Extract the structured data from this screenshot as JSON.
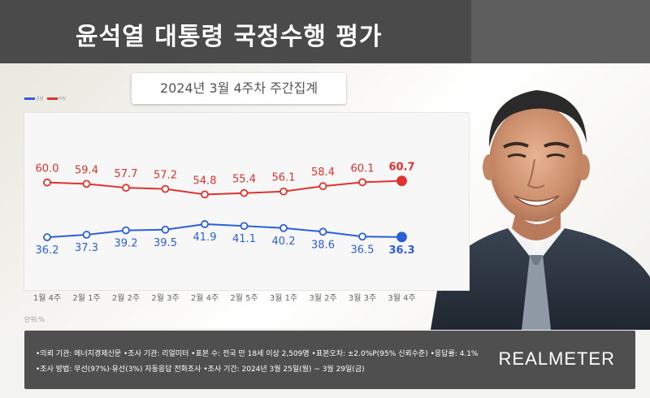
{
  "header": {
    "title": "윤석열 대통령 국정수행 평가"
  },
  "subtitle": "2024년 3월 4주차 주간집계",
  "legend": {
    "approve": "긍정",
    "disapprove": "부정"
  },
  "unit_label": "단위:%",
  "footer": {
    "line1": "•의뢰 기관: 에너지경제신문 •조사 기관: 리얼미터 •표본 수: 전국 만 18세 이상 2,509명 •표본오차: ±2.0%P(95% 신뢰수준) •응답률: 4.1%",
    "line2": "•조사 방법: 무선(97%)·유선(3%) 자동응답 전화조사 •조사 기간: 2024년 3월 25일(월) ~ 3월 29일(금)",
    "brand": "REALMETER"
  },
  "colors": {
    "approve": "#2b5fd9",
    "disapprove": "#e0332e"
  },
  "chart_data": {
    "type": "line",
    "categories": [
      "1월 4주",
      "2월 1주",
      "2월 2주",
      "2월 3주",
      "2월 4주",
      "2월 5주",
      "3월 1주",
      "3월 2주",
      "3월 3주",
      "3월 4주"
    ],
    "series": [
      {
        "name": "부정",
        "values": [
          60.0,
          59.4,
          57.7,
          57.2,
          54.8,
          55.4,
          56.1,
          58.4,
          60.1,
          60.7
        ]
      },
      {
        "name": "긍정",
        "values": [
          36.2,
          37.3,
          39.2,
          39.5,
          41.9,
          41.1,
          40.2,
          38.6,
          36.5,
          36.3
        ]
      }
    ],
    "ylim": [
      20,
      80
    ],
    "grid": false,
    "legend_position": "top-left"
  }
}
